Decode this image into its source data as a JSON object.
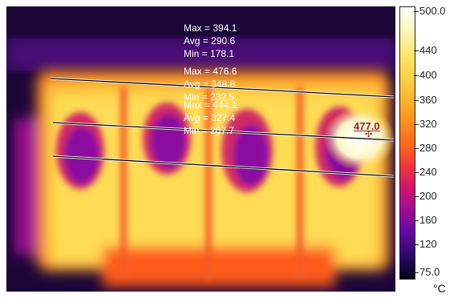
{
  "image": {
    "palette": "iron"
  },
  "lines": [
    {
      "max_label": "Max = 394.1",
      "avg_label": "Avg = 290.6",
      "min_label": "Min = 178.1"
    },
    {
      "max_label": "Max = 476.6",
      "avg_label": "Avg = 348.8",
      "min_label": "Min = 232.5"
    },
    {
      "max_label": "Max = 444.1",
      "avg_label": "Avg = 327.4",
      "min_label": "Min = 207.7"
    }
  ],
  "spot": {
    "value": "477.0"
  },
  "scale": {
    "max_label": "500.0",
    "min_label": "75.0",
    "ticks": [
      "440",
      "400",
      "360",
      "320",
      "280",
      "240",
      "200",
      "160",
      "120"
    ],
    "unit": "°C",
    "colors": {
      "hot": "#ffffff",
      "mid": "#f23a3a",
      "cold": "#040414"
    }
  }
}
